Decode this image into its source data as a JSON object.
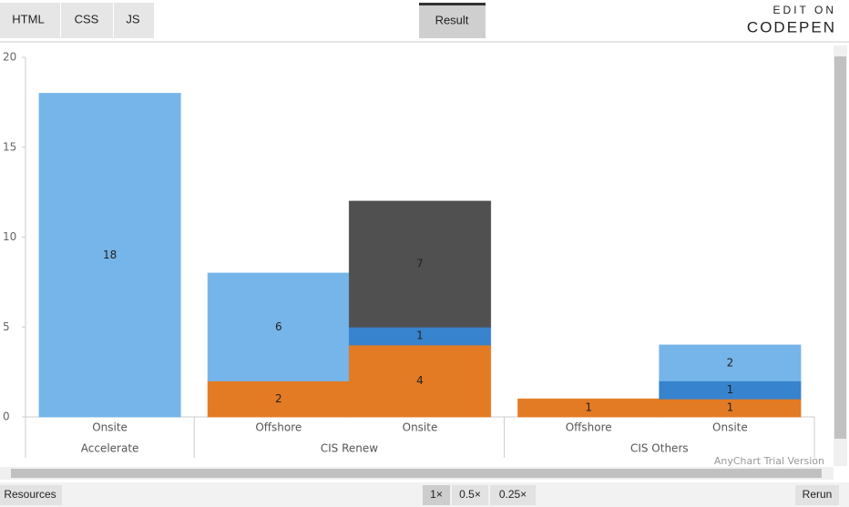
{
  "tabs": [
    "HTML",
    "CSS",
    "JS"
  ],
  "result_tab": "Result",
  "brand": {
    "top": "EDIT ON",
    "name": "CODEPEN"
  },
  "footer": {
    "resources": "Resources",
    "zoom": [
      "1×",
      "0.5×",
      "0.25×"
    ],
    "rerun": "Rerun"
  },
  "watermark": "AnyChart Trial Version",
  "chart_data": {
    "type": "bar",
    "stacked": true,
    "groups": [
      {
        "label": "Accelerate",
        "categories": [
          "Onsite"
        ]
      },
      {
        "label": "CIS Renew",
        "categories": [
          "Offshore",
          "Onsite"
        ]
      },
      {
        "label": "CIS Others",
        "categories": [
          "Offshore",
          "Onsite"
        ]
      }
    ],
    "series": [
      {
        "color": "#ef8026",
        "values": [
          null,
          2,
          4,
          1,
          1
        ]
      },
      {
        "color": "#3a8ad8",
        "values": [
          null,
          null,
          1,
          null,
          1
        ]
      },
      {
        "color": "#7bbff6",
        "values": [
          18,
          6,
          null,
          null,
          2
        ]
      },
      {
        "color": "#545454",
        "values": [
          null,
          null,
          7,
          null,
          null
        ]
      }
    ],
    "ylim": [
      0,
      20
    ],
    "yticks": [
      0,
      5,
      10,
      15,
      20
    ]
  }
}
